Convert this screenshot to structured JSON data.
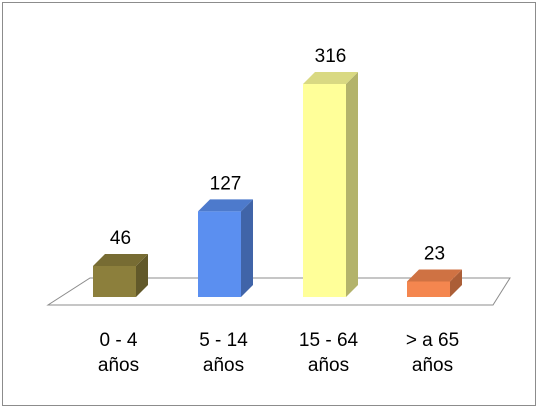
{
  "chart_data": {
    "type": "bar3d",
    "categories": [
      "0 - 4 años",
      "5 - 14 años",
      "15 - 64 años",
      "> a 65 años"
    ],
    "values": [
      46,
      127,
      316,
      23
    ],
    "colors": [
      "#8c7f3c",
      "#5b8ff0",
      "#ffff99",
      "#f4864f"
    ]
  }
}
